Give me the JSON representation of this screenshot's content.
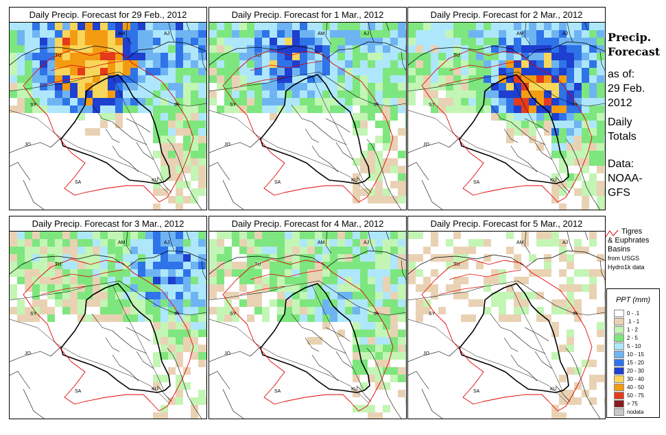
{
  "panels": [
    {
      "title": "Daily Precip. Forecast for  29 Feb., 2012",
      "intensity": 1.0,
      "focus": "north"
    },
    {
      "title": "Daily Precip. Forecast for  1 Mar., 2012",
      "intensity": 0.75,
      "focus": "north"
    },
    {
      "title": "Daily Precip. Forecast for  2 Mar., 2012",
      "intensity": 0.9,
      "focus": "east"
    },
    {
      "title": "Daily Precip. Forecast for  3 Mar., 2012",
      "intensity": 0.65,
      "focus": "northeast"
    },
    {
      "title": "Daily Precip. Forecast for  4 Mar., 2012",
      "intensity": 0.6,
      "focus": "center"
    },
    {
      "title": "Daily Precip. Forecast for  5 Mar., 2012",
      "intensity": 0.15,
      "focus": "east"
    }
  ],
  "country_labels": [
    "AM",
    "AJ",
    "TU",
    "SY",
    "IR",
    "JO",
    "SA",
    "KU"
  ],
  "side": {
    "title_line1": "Precip.",
    "title_line2": "Forecast",
    "asof": "as of:",
    "date_line1": "29 Feb.",
    "date_line2": "2012",
    "totals_line1": "Daily",
    "totals_line2": "Totals",
    "data_line1": "Data:",
    "data_line2": "NOAA-",
    "data_line3": "GFS"
  },
  "basin_legend": {
    "line1": "Tigres",
    "line2": "& Euphrates",
    "line3": "Basins",
    "line4": "from USGS",
    "line5": "Hydro1k data"
  },
  "ppt_legend": {
    "title": "PPT (mm)",
    "items": [
      {
        "label": "0 - .1",
        "color": "#ffffff"
      },
      {
        "label": ".1 - 1",
        "color": "#e9d2b4"
      },
      {
        "label": "1 - 2",
        "color": "#c3f5b5"
      },
      {
        "label": "2 - 5",
        "color": "#7ee67e"
      },
      {
        "label": "5 - 10",
        "color": "#aee7fb"
      },
      {
        "label": "10 - 15",
        "color": "#6fb4f2"
      },
      {
        "label": "15 - 20",
        "color": "#2f73e8"
      },
      {
        "label": "20 - 30",
        "color": "#1e3fcf"
      },
      {
        "label": "30 - 40",
        "color": "#f7d65a"
      },
      {
        "label": "40 - 50",
        "color": "#f39c12"
      },
      {
        "label": "50 - 75",
        "color": "#e53a1c"
      },
      {
        "label": "> 75",
        "color": "#8b1a1a"
      },
      {
        "label": "nodata",
        "color": "#c8c8c8"
      }
    ]
  }
}
